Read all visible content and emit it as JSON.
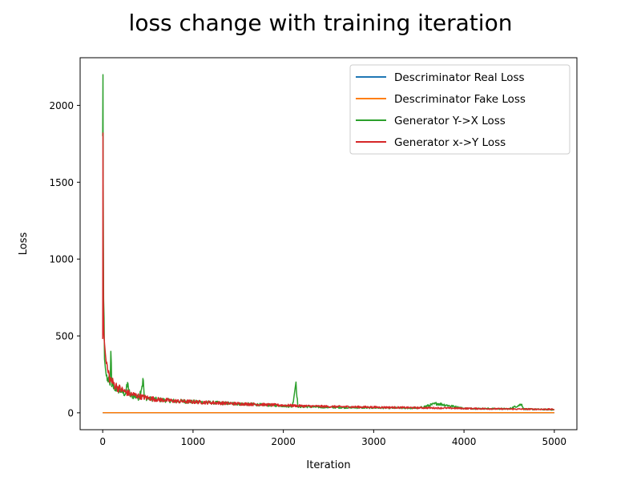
{
  "chart_data": {
    "type": "line",
    "title": "loss change with training iteration",
    "xlabel": "Iteration",
    "ylabel": "Loss",
    "xlim": [
      -250,
      5250
    ],
    "ylim": [
      -110,
      2310
    ],
    "xticks": [
      0,
      1000,
      2000,
      3000,
      4000,
      5000
    ],
    "yticks": [
      0,
      500,
      1000,
      1500,
      2000
    ],
    "grid": false,
    "legend_position": "upper-right",
    "series": [
      {
        "name": "Descriminator Real Loss",
        "color": "#1f77b4",
        "x": [
          0,
          5000
        ],
        "y": [
          0.4,
          0.4
        ]
      },
      {
        "name": "Descriminator Fake Loss",
        "color": "#ff7f0e",
        "x": [
          0,
          5000
        ],
        "y": [
          0.5,
          0.5
        ]
      },
      {
        "name": "Generator Y->X Loss",
        "color": "#2ca02c",
        "x": [
          0,
          3,
          5,
          10,
          15,
          20,
          30,
          40,
          60,
          80,
          90,
          100,
          130,
          160,
          200,
          250,
          280,
          300,
          350,
          400,
          450,
          460,
          500,
          600,
          700,
          800,
          1000,
          1200,
          1400,
          1600,
          1800,
          2000,
          2100,
          2140,
          2160,
          2300,
          2500,
          3000,
          3500,
          3700,
          4000,
          4500,
          4640,
          4660,
          5000
        ],
        "y": [
          1800,
          2200,
          1500,
          740,
          620,
          350,
          290,
          240,
          200,
          180,
          400,
          170,
          160,
          150,
          140,
          120,
          190,
          110,
          105,
          95,
          210,
          100,
          90,
          85,
          80,
          75,
          70,
          65,
          60,
          55,
          50,
          45,
          40,
          200,
          40,
          38,
          35,
          32,
          30,
          60,
          28,
          25,
          55,
          24,
          20
        ]
      },
      {
        "name": "Generator x->Y Loss",
        "color": "#d62728",
        "x": [
          0,
          3,
          5,
          8,
          12,
          20,
          30,
          40,
          60,
          80,
          100,
          130,
          160,
          200,
          250,
          300,
          350,
          400,
          500,
          600,
          700,
          800,
          1000,
          1200,
          1400,
          1600,
          1800,
          2000,
          2200,
          2500,
          3000,
          3500,
          3800,
          4000,
          4500,
          5000
        ],
        "y": [
          480,
          1820,
          1100,
          640,
          520,
          450,
          380,
          320,
          260,
          220,
          200,
          180,
          165,
          150,
          135,
          120,
          115,
          105,
          95,
          85,
          80,
          75,
          70,
          65,
          60,
          56,
          52,
          48,
          44,
          40,
          36,
          32,
          30,
          28,
          24,
          22
        ]
      }
    ]
  }
}
